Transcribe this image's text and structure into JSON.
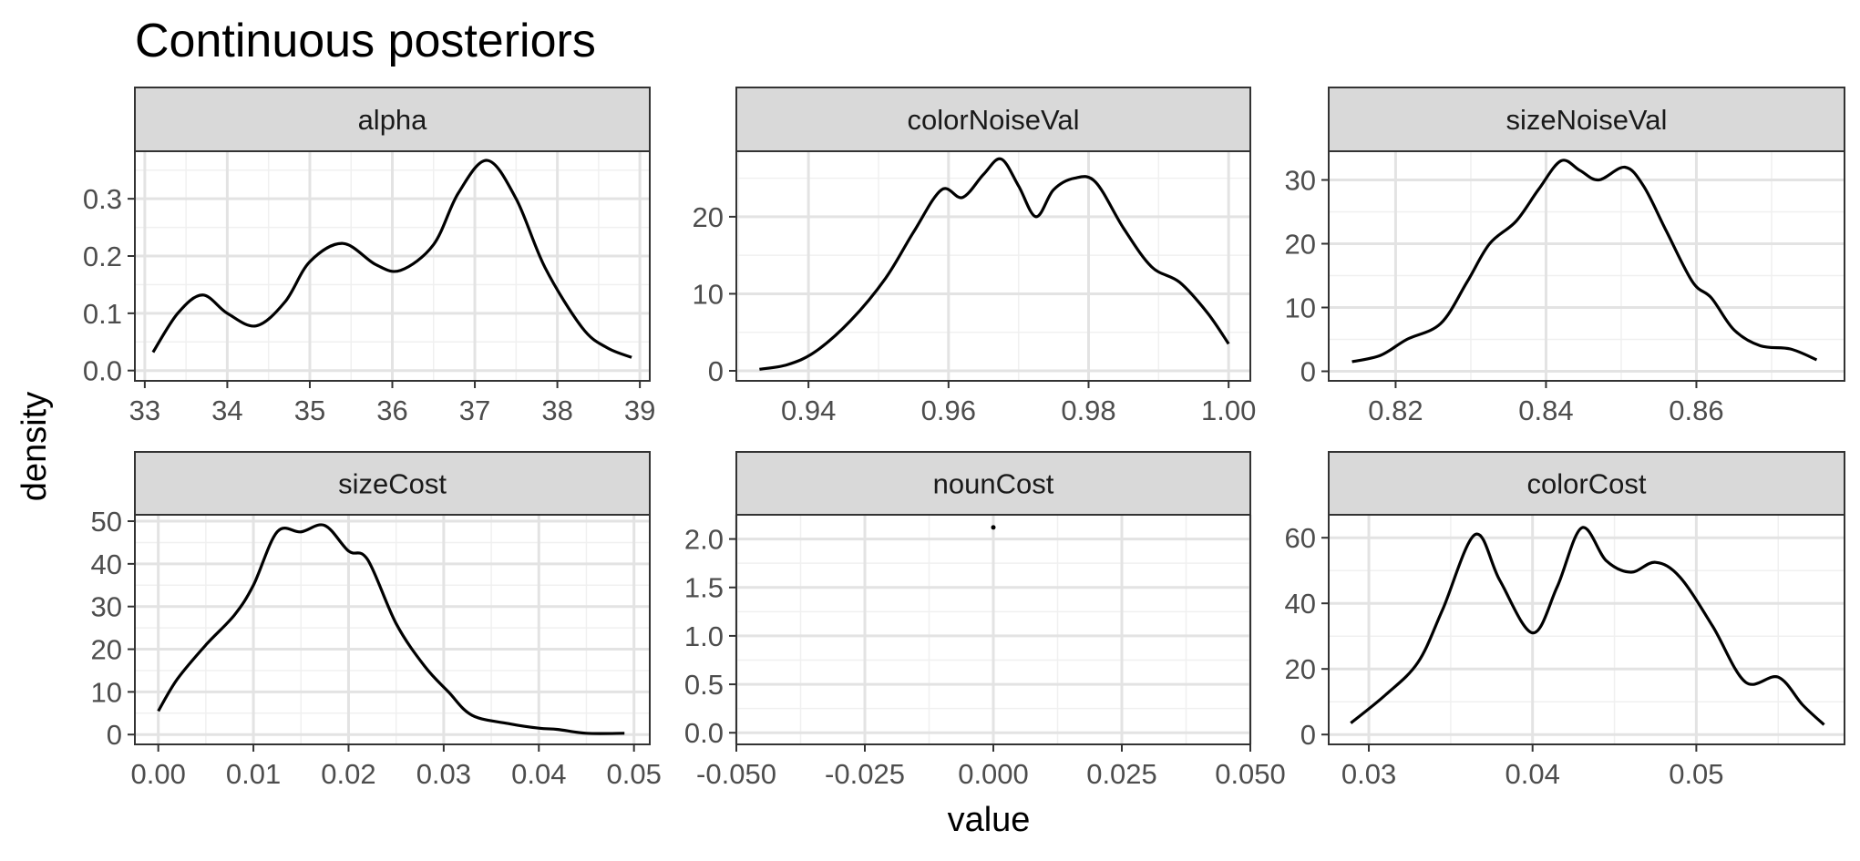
{
  "chart_data": {
    "type": "line",
    "title": "Continuous posteriors",
    "xlabel": "value",
    "ylabel": "density",
    "grid": true,
    "panels": [
      {
        "name": "alpha",
        "xlim": [
          32.88,
          39.12
        ],
        "ylim": [
          -0.018,
          0.383
        ],
        "xticks": [
          33,
          34,
          35,
          36,
          37,
          38,
          39
        ],
        "xtick_labels": [
          "33",
          "34",
          "35",
          "36",
          "37",
          "38",
          "39"
        ],
        "yticks": [
          0.0,
          0.1,
          0.2,
          0.3
        ],
        "ytick_labels": [
          "0.0",
          "0.1",
          "0.2",
          "0.3"
        ],
        "x": [
          33.1,
          33.4,
          33.7,
          34.0,
          34.35,
          34.7,
          35.0,
          35.4,
          35.8,
          36.1,
          36.5,
          36.8,
          37.15,
          37.5,
          37.85,
          38.3,
          38.6,
          38.9
        ],
        "y": [
          0.032,
          0.1,
          0.132,
          0.1,
          0.078,
          0.12,
          0.19,
          0.222,
          0.185,
          0.175,
          0.22,
          0.31,
          0.367,
          0.3,
          0.18,
          0.075,
          0.04,
          0.023
        ]
      },
      {
        "name": "colorNoiseVal",
        "xlim": [
          0.9297,
          1.0031
        ],
        "ylim": [
          -1.3,
          28.5
        ],
        "xticks": [
          0.94,
          0.96,
          0.98,
          1.0
        ],
        "xtick_labels": [
          "0.94",
          "0.96",
          "0.98",
          "1.00"
        ],
        "yticks": [
          0,
          10,
          20
        ],
        "ytick_labels": [
          "0",
          "10",
          "20"
        ],
        "x": [
          0.933,
          0.937,
          0.941,
          0.946,
          0.951,
          0.955,
          0.959,
          0.962,
          0.965,
          0.9675,
          0.97,
          0.9725,
          0.975,
          0.978,
          0.981,
          0.985,
          0.989,
          0.993,
          0.997,
          1.0
        ],
        "y": [
          0.2,
          0.8,
          2.5,
          6.5,
          12.0,
          18.0,
          23.5,
          22.5,
          25.5,
          27.5,
          24.0,
          20.0,
          23.5,
          25.0,
          24.5,
          18.5,
          13.5,
          11.5,
          7.5,
          3.5
        ]
      },
      {
        "name": "sizeNoiseVal",
        "xlim": [
          0.8111,
          0.8797
        ],
        "ylim": [
          -1.5,
          34.5
        ],
        "xticks": [
          0.82,
          0.84,
          0.86
        ],
        "xtick_labels": [
          "0.82",
          "0.84",
          "0.86"
        ],
        "yticks": [
          0,
          10,
          20,
          30
        ],
        "ytick_labels": [
          "0",
          "10",
          "20",
          "30"
        ],
        "x": [
          0.8142,
          0.818,
          0.8215,
          0.826,
          0.8295,
          0.8325,
          0.836,
          0.839,
          0.842,
          0.8445,
          0.847,
          0.8505,
          0.853,
          0.856,
          0.8595,
          0.862,
          0.865,
          0.8685,
          0.8725,
          0.876
        ],
        "y": [
          1.5,
          2.5,
          5.0,
          7.5,
          14.0,
          20.0,
          23.5,
          28.5,
          33.0,
          31.5,
          30.0,
          32.0,
          29.0,
          22.0,
          14.0,
          11.5,
          6.5,
          4.0,
          3.5,
          1.8
        ]
      },
      {
        "name": "sizeCost",
        "xlim": [
          -0.00246,
          0.05166
        ],
        "ylim": [
          -2.3,
          51.5
        ],
        "xticks": [
          0.0,
          0.01,
          0.02,
          0.03,
          0.04,
          0.05
        ],
        "xtick_labels": [
          "0.00",
          "0.01",
          "0.02",
          "0.03",
          "0.04",
          "0.05"
        ],
        "yticks": [
          0,
          10,
          20,
          30,
          40,
          50
        ],
        "ytick_labels": [
          "0",
          "10",
          "20",
          "30",
          "40",
          "50"
        ],
        "x": [
          0.0,
          0.002,
          0.005,
          0.008,
          0.01,
          0.0125,
          0.015,
          0.0175,
          0.02,
          0.022,
          0.025,
          0.028,
          0.0305,
          0.033,
          0.037,
          0.04,
          0.042,
          0.045,
          0.049
        ],
        "y": [
          5.5,
          13.0,
          21.0,
          28.0,
          35.0,
          47.5,
          47.5,
          49.0,
          43.0,
          41.0,
          26.0,
          16.0,
          10.0,
          4.5,
          2.5,
          1.5,
          1.2,
          0.3,
          0.3
        ]
      },
      {
        "name": "nounCost",
        "xlim": [
          -0.05,
          0.05
        ],
        "ylim": [
          -0.12,
          2.25
        ],
        "xticks": [
          -0.05,
          -0.025,
          0.0,
          0.025,
          0.05
        ],
        "xtick_labels": [
          "-0.050",
          "-0.025",
          "0.000",
          "0.025",
          "0.050"
        ],
        "yticks": [
          0.0,
          0.5,
          1.0,
          1.5,
          2.0
        ],
        "ytick_labels": [
          "0.0",
          "0.5",
          "1.0",
          "1.5",
          "2.0"
        ],
        "points": [
          {
            "x": 0.0,
            "y": 2.12
          }
        ]
      },
      {
        "name": "colorCost",
        "xlim": [
          0.02755,
          0.05905
        ],
        "ylim": [
          -3.0,
          67.0
        ],
        "xticks": [
          0.03,
          0.04,
          0.05
        ],
        "xtick_labels": [
          "0.03",
          "0.04",
          "0.05"
        ],
        "yticks": [
          0,
          20,
          40,
          60
        ],
        "ytick_labels": [
          "0",
          "20",
          "40",
          "60"
        ],
        "x": [
          0.0289,
          0.031,
          0.033,
          0.0345,
          0.0365,
          0.038,
          0.04,
          0.0415,
          0.043,
          0.0445,
          0.046,
          0.0475,
          0.049,
          0.051,
          0.053,
          0.055,
          0.0565,
          0.0578
        ],
        "y": [
          3.5,
          12.0,
          22.0,
          38.0,
          61.0,
          47.0,
          31.0,
          45.0,
          63.0,
          53.0,
          49.5,
          52.5,
          48.0,
          33.0,
          16.0,
          17.5,
          9.0,
          3.0
        ]
      }
    ]
  }
}
